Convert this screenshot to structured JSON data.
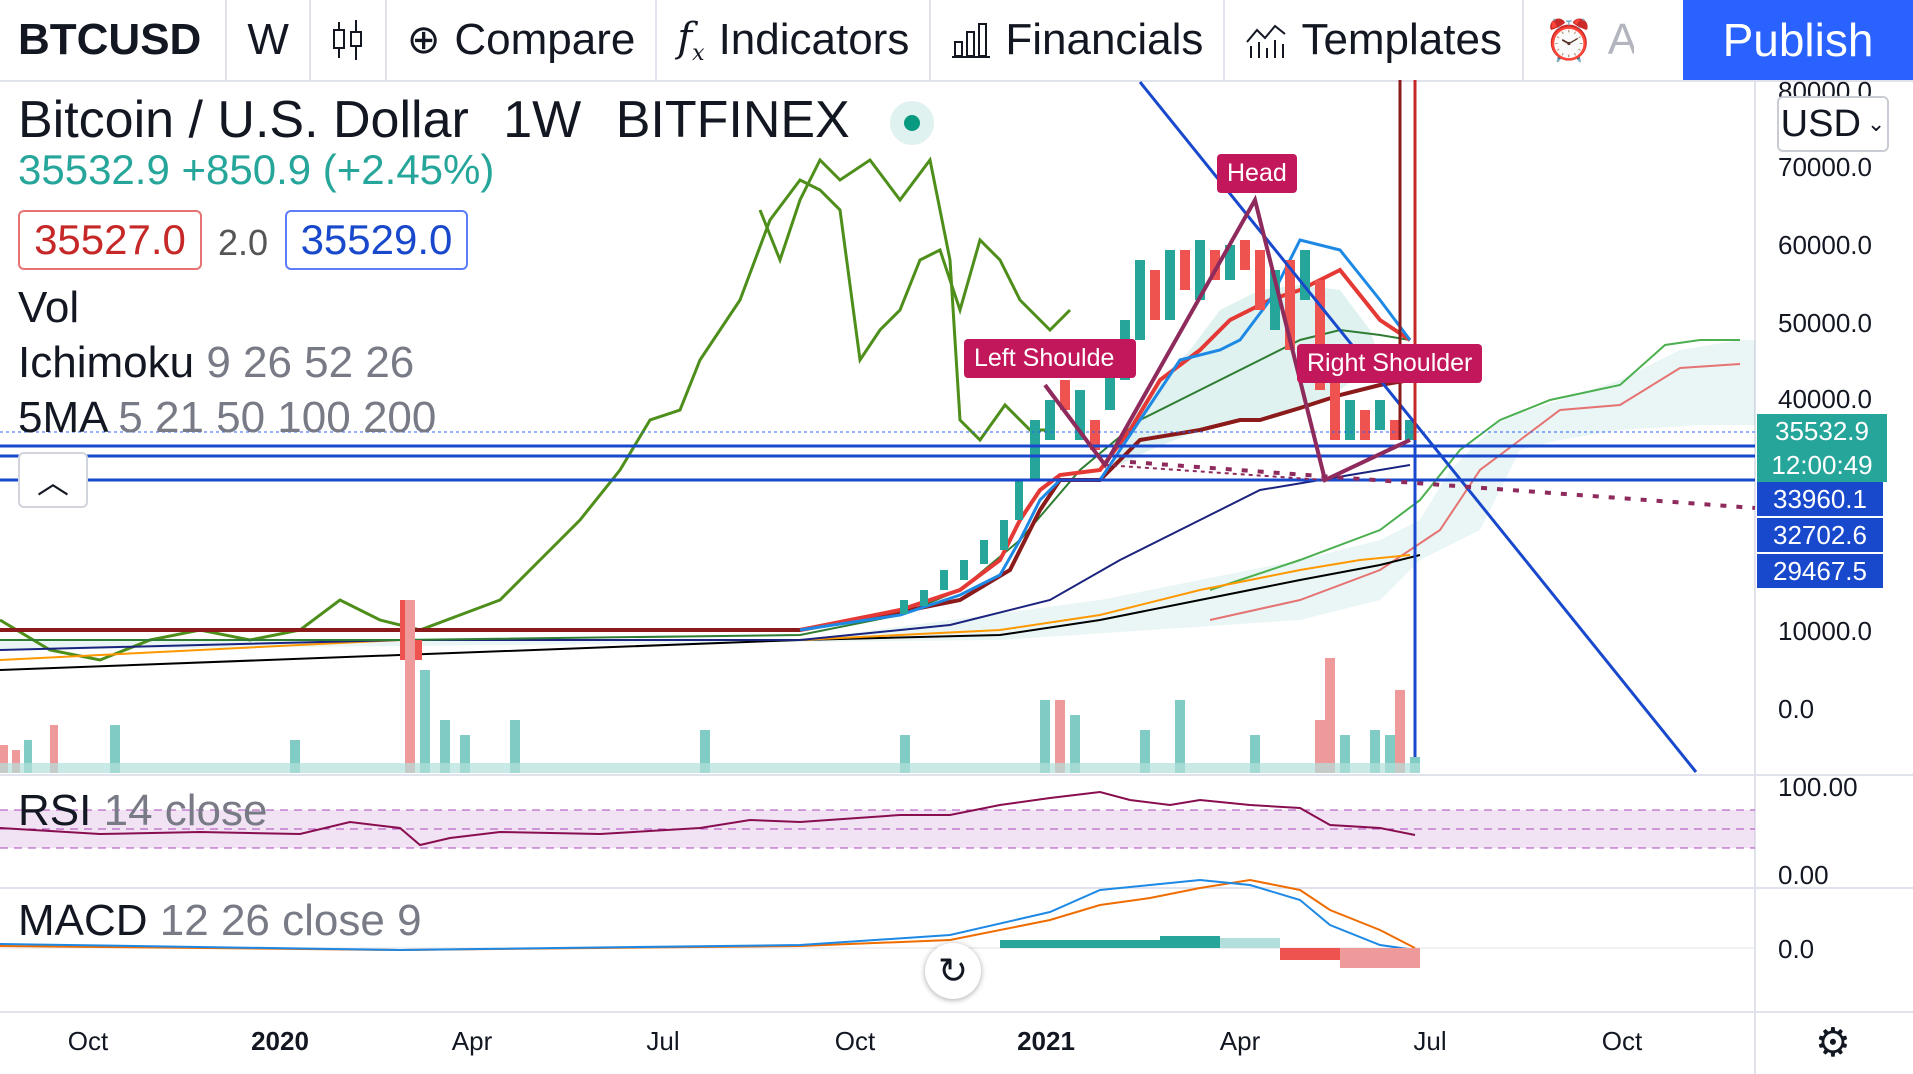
{
  "toolbar": {
    "symbol": "BTCUSD",
    "interval": "W",
    "compare": "Compare",
    "indicators": "Indicators",
    "financials": "Financials",
    "templates": "Templates",
    "alerts": "Al",
    "publish": "Publish"
  },
  "legend": {
    "title": "Bitcoin / U.S. Dollar",
    "interval": "1W",
    "exchange": "BITFINEX",
    "change": "35532.9 +850.9 (+2.45%)",
    "sell": "35527.0",
    "spread": "2.0",
    "buy": "35529.0",
    "vol": "Vol",
    "ichimoku_name": "Ichimoku",
    "ichimoku_params": "9 26 52 26",
    "ma_name": "5MA",
    "ma_params": "5 21 50 100 200",
    "rsi_name": "RSI",
    "rsi_params": "14 close",
    "macd_name": "MACD",
    "macd_params": "12 26 close 9"
  },
  "price_axis": {
    "currency": "USD",
    "labels": [
      "80000.0",
      "70000.0",
      "60000.0",
      "50000.0",
      "40000.0",
      "10000.0",
      "0.0"
    ],
    "last_price": "35532.9",
    "countdown": "12:00:49",
    "levels": [
      "33960.1",
      "32702.6",
      "29467.5"
    ]
  },
  "rsi_axis": [
    "100.00",
    "0.00"
  ],
  "macd_axis": [
    "0.0"
  ],
  "time_axis": [
    "Oct",
    "2020",
    "Apr",
    "Jul",
    "Oct",
    "2021",
    "Apr",
    "Jul",
    "Oct"
  ],
  "patterns": {
    "left_shoulder": "Left Shoulde",
    "head": "Head",
    "right_shoulder": "Right Shoulder"
  },
  "colors": {
    "up": "#26a69a",
    "down": "#ef5350",
    "accent": "#2962ff",
    "pattern": "#c2185b"
  }
}
